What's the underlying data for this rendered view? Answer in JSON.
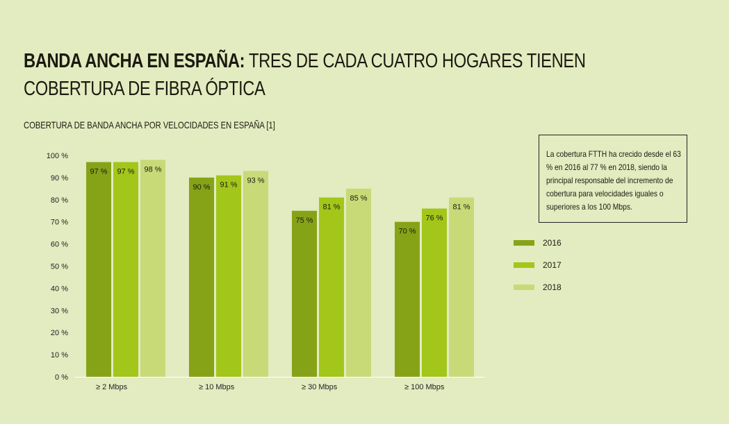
{
  "title_bold": "BANDA ANCHA EN ESPAÑA:",
  "title_rest": " TRES DE CADA CUATRO HOGARES TIENEN COBERTURA DE FIBRA ÓPTICA",
  "note": "La cobertura FTTH ha crecido desde el 63 % en 2016 al 77 % en 2018, siendo la principal responsable del incremento de cobertura para velocidades iguales o superiores a los 100 Mbps.",
  "chart_data": {
    "type": "bar",
    "title": "COBERTURA DE BANDA ANCHA POR VELOCIDADES EN ESPAÑA [1]",
    "categories": [
      "≥ 2 Mbps",
      "≥ 10 Mbps",
      "≥ 30 Mbps",
      "≥ 100 Mbps"
    ],
    "series": [
      {
        "name": "2016",
        "color": "#86a318",
        "values": [
          97,
          90,
          75,
          70
        ]
      },
      {
        "name": "2017",
        "color": "#a3c61a",
        "values": [
          97,
          91,
          81,
          76
        ]
      },
      {
        "name": "2018",
        "color": "#c8da78",
        "values": [
          98,
          93,
          85,
          81
        ]
      }
    ],
    "ylim": [
      0,
      100
    ],
    "yticks": [
      "0 %",
      "10 %",
      "20 %",
      "30 %",
      "40 %",
      "50 %",
      "60 %",
      "70 %",
      "80 %",
      "90 %",
      "100 %"
    ],
    "value_suffix": " %",
    "legend": "right",
    "grid": false
  }
}
